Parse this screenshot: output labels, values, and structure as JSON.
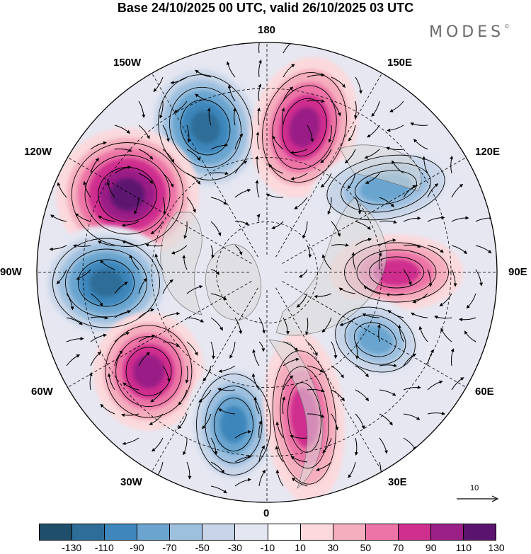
{
  "title": "Base 24/10/2025 00 UTC, valid 26/10/2025 03 UTC",
  "brand": "MODES",
  "brand_mark": "©",
  "longitude_labels": {
    "top": "180",
    "top_right": "150E",
    "right_upper": "120E",
    "right": "90E",
    "right_lower": "60E",
    "bottom_right": "30E",
    "bottom": "0",
    "bottom_left": "30W",
    "left_lower": "60W",
    "left": "90W",
    "left_upper": "120W",
    "top_left": "150W"
  },
  "reference_vector": {
    "label": "10"
  },
  "colorbar": {
    "ticks": [
      "-130",
      "-110",
      "-90",
      "-70",
      "-50",
      "-30",
      "-10",
      "10",
      "30",
      "50",
      "70",
      "90",
      "110",
      "130"
    ],
    "colors": [
      "#1f4e6b",
      "#2e6d98",
      "#3e86bb",
      "#6ba5cf",
      "#9ec0df",
      "#c8d5e8",
      "#e4e6f1",
      "#ffffff",
      "#fbd9dc",
      "#f5aebe",
      "#ec74a6",
      "#cf2f8e",
      "#9a1f86",
      "#5b1370"
    ]
  },
  "anomaly_centers": [
    {
      "name": "150W",
      "value": -120
    },
    {
      "name": "165E",
      "value": 110
    },
    {
      "name": "125W",
      "value": 125
    },
    {
      "name": "130E",
      "value": -95
    },
    {
      "name": "100W",
      "value": -130
    },
    {
      "name": "85E",
      "value": 90
    },
    {
      "name": "65W",
      "value": 115
    },
    {
      "name": "55E",
      "value": -80
    },
    {
      "name": "30W",
      "value": -100
    },
    {
      "name": "5E",
      "value": 95
    }
  ]
}
